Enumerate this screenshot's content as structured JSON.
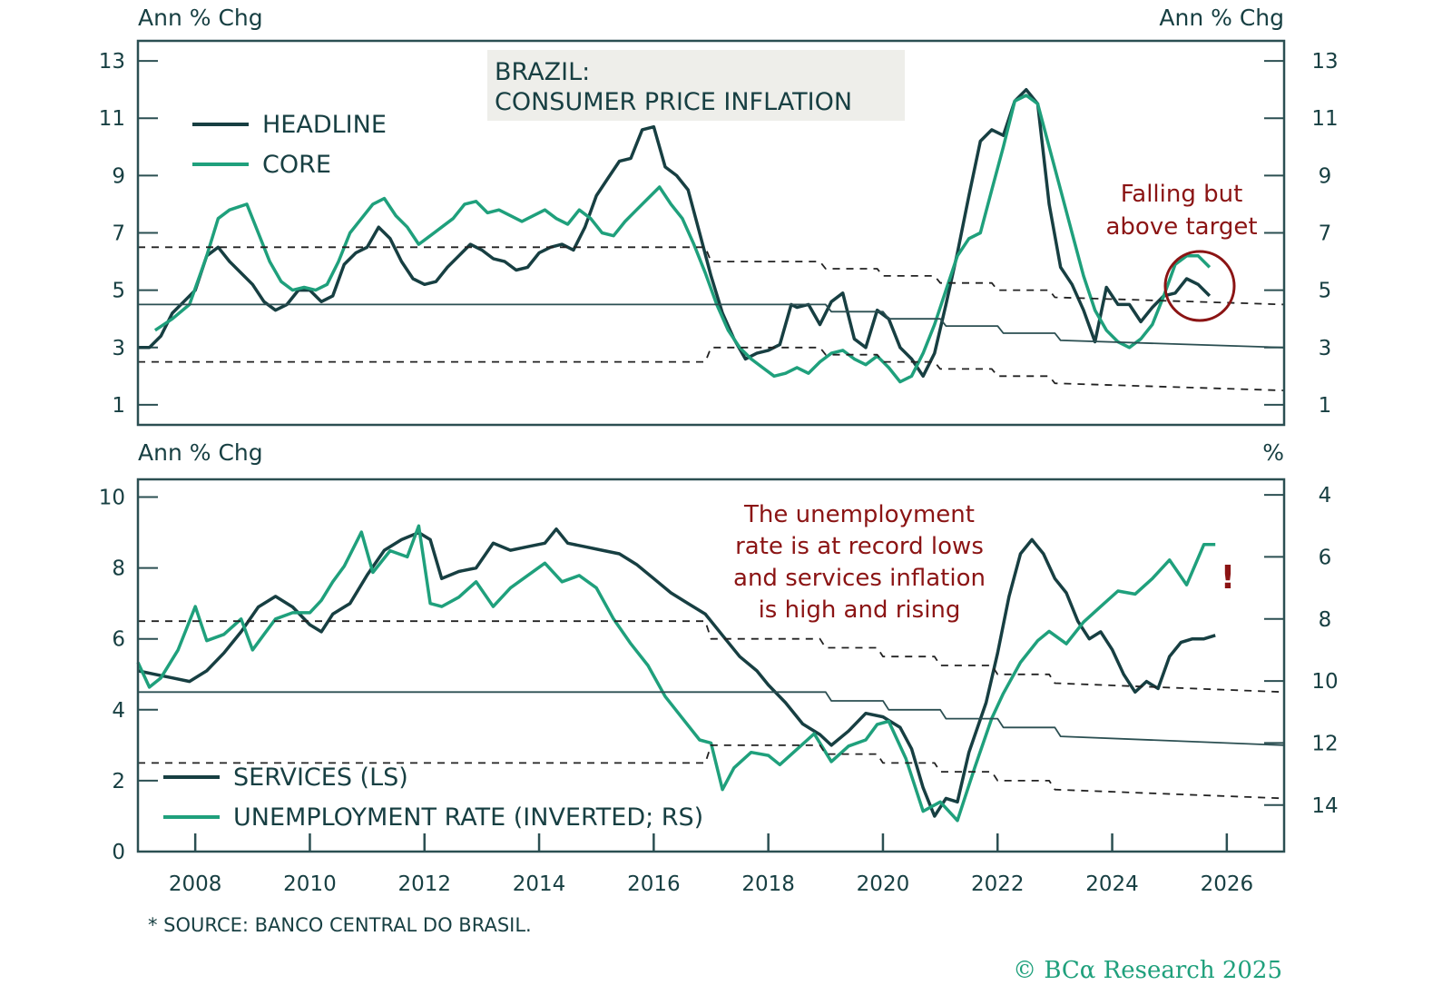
{
  "colors": {
    "headline": "#173f42",
    "core": "#1fa07c",
    "frame": "#2b4f52",
    "annotation": "#8b1414",
    "title_box": "#eeeeea",
    "credit": "#1fa07c"
  },
  "footer": {
    "source": "* SOURCE: BANCO CENTRAL DO BRASIL.",
    "credit": "© BCα Research 2025"
  },
  "chart_data": [
    {
      "type": "line",
      "title": "BRAZIL:",
      "subtitle": "CONSUMER PRICE INFLATION",
      "ylabel_left": "Ann % Chg",
      "ylabel_right": "Ann % Chg",
      "xlim": [
        2007.0,
        2027.0
      ],
      "ylim": [
        0.3,
        13.7
      ],
      "yticks": [
        1,
        3,
        5,
        7,
        9,
        11,
        13
      ],
      "legend": [
        "HEADLINE",
        "CORE"
      ],
      "legend_position": "top-left",
      "annotation": {
        "lines": [
          "Falling but",
          "above target"
        ],
        "circle_at": [
          2025.4,
          5.3
        ]
      },
      "series": [
        {
          "name": "HEADLINE",
          "color_key": "headline",
          "x": [
            2007.0,
            2007.2,
            2007.4,
            2007.6,
            2007.8,
            2008.0,
            2008.2,
            2008.4,
            2008.6,
            2008.8,
            2009.0,
            2009.2,
            2009.4,
            2009.6,
            2009.8,
            2010.0,
            2010.2,
            2010.4,
            2010.6,
            2010.8,
            2011.0,
            2011.2,
            2011.4,
            2011.6,
            2011.8,
            2012.0,
            2012.2,
            2012.4,
            2012.6,
            2012.8,
            2013.0,
            2013.2,
            2013.4,
            2013.6,
            2013.8,
            2014.0,
            2014.2,
            2014.4,
            2014.6,
            2014.8,
            2015.0,
            2015.2,
            2015.4,
            2015.6,
            2015.8,
            2016.0,
            2016.2,
            2016.4,
            2016.6,
            2016.8,
            2017.0,
            2017.2,
            2017.4,
            2017.6,
            2017.8,
            2018.0,
            2018.2,
            2018.4,
            2018.5,
            2018.7,
            2018.9,
            2019.1,
            2019.3,
            2019.5,
            2019.7,
            2019.9,
            2020.1,
            2020.3,
            2020.5,
            2020.7,
            2020.9,
            2021.1,
            2021.3,
            2021.5,
            2021.7,
            2021.9,
            2022.1,
            2022.3,
            2022.5,
            2022.7,
            2022.9,
            2023.1,
            2023.3,
            2023.5,
            2023.7,
            2023.9,
            2024.1,
            2024.3,
            2024.5,
            2024.7,
            2024.9,
            2025.1,
            2025.3,
            2025.5,
            2025.7
          ],
          "y": [
            3.0,
            3.0,
            3.4,
            4.2,
            4.6,
            5.0,
            6.2,
            6.5,
            6.0,
            5.6,
            5.2,
            4.6,
            4.3,
            4.5,
            5.0,
            5.0,
            4.6,
            4.8,
            5.9,
            6.3,
            6.5,
            7.2,
            6.8,
            6.0,
            5.4,
            5.2,
            5.3,
            5.8,
            6.2,
            6.6,
            6.4,
            6.1,
            6.0,
            5.7,
            5.8,
            6.3,
            6.5,
            6.6,
            6.4,
            7.2,
            8.3,
            8.9,
            9.5,
            9.6,
            10.6,
            10.7,
            9.3,
            9.0,
            8.5,
            7.0,
            5.5,
            4.2,
            3.3,
            2.6,
            2.8,
            2.9,
            3.1,
            4.5,
            4.4,
            4.5,
            3.8,
            4.6,
            4.9,
            3.3,
            3.0,
            4.3,
            4.0,
            3.0,
            2.6,
            2.0,
            2.8,
            4.5,
            6.3,
            8.3,
            10.2,
            10.6,
            10.4,
            11.6,
            12.0,
            11.5,
            8.0,
            5.8,
            5.2,
            4.3,
            3.2,
            5.1,
            4.5,
            4.5,
            3.9,
            4.4,
            4.8,
            4.9,
            5.4,
            5.2,
            4.8
          ]
        },
        {
          "name": "CORE",
          "color_key": "core",
          "x": [
            2007.3,
            2007.6,
            2007.9,
            2008.2,
            2008.4,
            2008.6,
            2008.9,
            2009.1,
            2009.3,
            2009.5,
            2009.7,
            2009.9,
            2010.1,
            2010.3,
            2010.5,
            2010.7,
            2010.9,
            2011.1,
            2011.3,
            2011.5,
            2011.7,
            2011.9,
            2012.1,
            2012.3,
            2012.5,
            2012.7,
            2012.9,
            2013.1,
            2013.3,
            2013.5,
            2013.7,
            2013.9,
            2014.1,
            2014.3,
            2014.5,
            2014.7,
            2014.9,
            2015.1,
            2015.3,
            2015.5,
            2015.7,
            2015.9,
            2016.1,
            2016.3,
            2016.5,
            2016.7,
            2016.9,
            2017.1,
            2017.3,
            2017.5,
            2017.7,
            2017.9,
            2018.1,
            2018.3,
            2018.5,
            2018.7,
            2018.9,
            2019.1,
            2019.3,
            2019.5,
            2019.7,
            2019.9,
            2020.1,
            2020.3,
            2020.5,
            2020.7,
            2020.9,
            2021.1,
            2021.3,
            2021.5,
            2021.7,
            2021.9,
            2022.1,
            2022.3,
            2022.5,
            2022.7,
            2022.9,
            2023.1,
            2023.3,
            2023.5,
            2023.7,
            2023.9,
            2024.1,
            2024.3,
            2024.5,
            2024.7,
            2024.9,
            2025.1,
            2025.3,
            2025.5,
            2025.7
          ],
          "y": [
            3.6,
            4.0,
            4.5,
            6.2,
            7.5,
            7.8,
            8.0,
            7.0,
            6.0,
            5.3,
            5.0,
            5.1,
            5.0,
            5.2,
            6.0,
            7.0,
            7.5,
            8.0,
            8.2,
            7.6,
            7.2,
            6.6,
            6.9,
            7.2,
            7.5,
            8.0,
            8.1,
            7.7,
            7.8,
            7.6,
            7.4,
            7.6,
            7.8,
            7.5,
            7.3,
            7.8,
            7.5,
            7.0,
            6.9,
            7.4,
            7.8,
            8.2,
            8.6,
            8.0,
            7.5,
            6.6,
            5.6,
            4.5,
            3.6,
            3.0,
            2.6,
            2.3,
            2.0,
            2.1,
            2.3,
            2.1,
            2.5,
            2.8,
            2.9,
            2.6,
            2.4,
            2.7,
            2.3,
            1.8,
            2.0,
            2.8,
            3.8,
            5.0,
            6.2,
            6.8,
            7.0,
            8.5,
            10.0,
            11.6,
            11.8,
            11.5,
            10.0,
            8.5,
            7.0,
            5.5,
            4.3,
            3.6,
            3.2,
            3.0,
            3.3,
            3.8,
            4.8,
            5.9,
            6.2,
            6.2,
            5.8
          ]
        },
        {
          "name": "TARGET CENTER",
          "style": "solid-thin",
          "x": [
            2007.0,
            2019.0,
            2019.1,
            2020.0,
            2020.1,
            2021.0,
            2021.1,
            2022.0,
            2022.1,
            2023.0,
            2023.1,
            2027.0
          ],
          "y": [
            4.5,
            4.5,
            4.25,
            4.25,
            4.0,
            4.0,
            3.75,
            3.75,
            3.5,
            3.5,
            3.25,
            3.0
          ]
        },
        {
          "name": "TARGET UPPER",
          "style": "dashed",
          "x": [
            2007.0,
            2016.9,
            2017.0,
            2018.9,
            2019.0,
            2019.9,
            2020.0,
            2020.9,
            2021.0,
            2021.9,
            2022.0,
            2022.9,
            2023.0,
            2027.0
          ],
          "y": [
            6.5,
            6.5,
            6.0,
            6.0,
            5.75,
            5.75,
            5.5,
            5.5,
            5.25,
            5.25,
            5.0,
            5.0,
            4.75,
            4.5
          ]
        },
        {
          "name": "TARGET LOWER",
          "style": "dashed",
          "x": [
            2007.0,
            2016.9,
            2017.0,
            2018.9,
            2019.0,
            2019.9,
            2020.0,
            2020.9,
            2021.0,
            2021.9,
            2022.0,
            2022.9,
            2023.0,
            2027.0
          ],
          "y": [
            2.5,
            2.5,
            3.0,
            3.0,
            2.75,
            2.75,
            2.5,
            2.5,
            2.25,
            2.25,
            2.0,
            2.0,
            1.75,
            1.5
          ]
        }
      ]
    },
    {
      "type": "line",
      "ylabel_left": "Ann % Chg",
      "ylabel_right": "%",
      "xlim": [
        2007.0,
        2027.0
      ],
      "xticks": [
        2008,
        2010,
        2012,
        2014,
        2016,
        2018,
        2020,
        2022,
        2024,
        2026
      ],
      "ylim_left": [
        0,
        10.5
      ],
      "yticks_left": [
        0,
        2,
        4,
        6,
        8,
        10
      ],
      "ylim_right_inverted": [
        3.5,
        15.5
      ],
      "yticks_right": [
        4,
        6,
        8,
        10,
        12,
        14
      ],
      "legend": [
        "SERVICES (LS)",
        "UNEMPLOYMENT RATE (INVERTED; RS)"
      ],
      "legend_position": "bottom-left",
      "annotation": {
        "lines": [
          "The unemployment",
          "rate is at record lows",
          "and services inflation",
          "is high and rising"
        ],
        "mark": "!"
      },
      "series": [
        {
          "name": "SERVICES (LS)",
          "color_key": "headline",
          "axis": "left",
          "x": [
            2007.0,
            2007.3,
            2007.6,
            2007.9,
            2008.2,
            2008.5,
            2008.8,
            2009.1,
            2009.4,
            2009.7,
            2010.0,
            2010.2,
            2010.4,
            2010.7,
            2011.0,
            2011.3,
            2011.6,
            2011.9,
            2012.1,
            2012.3,
            2012.6,
            2012.9,
            2013.2,
            2013.5,
            2013.8,
            2014.1,
            2014.3,
            2014.5,
            2014.8,
            2015.1,
            2015.4,
            2015.7,
            2016.0,
            2016.3,
            2016.6,
            2016.9,
            2017.2,
            2017.5,
            2017.8,
            2018.0,
            2018.3,
            2018.6,
            2018.9,
            2019.1,
            2019.4,
            2019.7,
            2020.0,
            2020.3,
            2020.5,
            2020.7,
            2020.9,
            2021.1,
            2021.3,
            2021.5,
            2021.8,
            2022.0,
            2022.2,
            2022.4,
            2022.6,
            2022.8,
            2023.0,
            2023.2,
            2023.4,
            2023.6,
            2023.8,
            2024.0,
            2024.2,
            2024.4,
            2024.6,
            2024.8,
            2025.0,
            2025.2,
            2025.4,
            2025.6,
            2025.8
          ],
          "y": [
            5.1,
            5.0,
            4.9,
            4.8,
            5.1,
            5.6,
            6.2,
            6.9,
            7.2,
            6.9,
            6.4,
            6.2,
            6.7,
            7.0,
            7.8,
            8.5,
            8.8,
            9.0,
            8.8,
            7.7,
            7.9,
            8.0,
            8.7,
            8.5,
            8.6,
            8.7,
            9.1,
            8.7,
            8.6,
            8.5,
            8.4,
            8.1,
            7.7,
            7.3,
            7.0,
            6.7,
            6.1,
            5.5,
            5.1,
            4.7,
            4.2,
            3.6,
            3.3,
            3.0,
            3.4,
            3.9,
            3.8,
            3.5,
            2.9,
            1.8,
            1.0,
            1.5,
            1.4,
            2.8,
            4.2,
            5.6,
            7.2,
            8.4,
            8.8,
            8.4,
            7.7,
            7.3,
            6.5,
            6.0,
            6.2,
            5.7,
            5.0,
            4.5,
            4.8,
            4.6,
            5.5,
            5.9,
            6.0,
            6.0,
            6.1
          ]
        },
        {
          "name": "UNEMPLOYMENT RATE (INVERTED; RS)",
          "color_key": "core",
          "axis": "right",
          "x": [
            2007.0,
            2007.2,
            2007.4,
            2007.7,
            2008.0,
            2008.2,
            2008.5,
            2008.8,
            2009.0,
            2009.2,
            2009.4,
            2009.7,
            2010.0,
            2010.2,
            2010.4,
            2010.6,
            2010.9,
            2011.1,
            2011.4,
            2011.7,
            2011.9,
            2012.1,
            2012.3,
            2012.6,
            2012.9,
            2013.2,
            2013.5,
            2013.8,
            2014.1,
            2014.4,
            2014.7,
            2015.0,
            2015.3,
            2015.6,
            2015.9,
            2016.2,
            2016.5,
            2016.8,
            2017.0,
            2017.2,
            2017.4,
            2017.7,
            2018.0,
            2018.2,
            2018.5,
            2018.8,
            2019.1,
            2019.4,
            2019.7,
            2019.9,
            2020.1,
            2020.4,
            2020.7,
            2021.0,
            2021.3,
            2021.6,
            2021.9,
            2022.1,
            2022.4,
            2022.7,
            2022.9,
            2023.2,
            2023.5,
            2023.8,
            2024.1,
            2024.4,
            2024.7,
            2025.0,
            2025.3,
            2025.6,
            2025.8
          ],
          "y": [
            9.4,
            10.2,
            9.9,
            9.0,
            7.6,
            8.7,
            8.5,
            8.0,
            9.0,
            8.5,
            8.0,
            7.8,
            7.8,
            7.4,
            6.8,
            6.3,
            5.2,
            6.5,
            5.8,
            6.0,
            5.0,
            7.5,
            7.6,
            7.3,
            6.8,
            7.6,
            7.0,
            6.6,
            6.2,
            6.8,
            6.6,
            7.0,
            8.0,
            8.8,
            9.5,
            10.5,
            11.2,
            11.9,
            12.0,
            13.5,
            12.8,
            12.3,
            12.4,
            12.7,
            12.2,
            11.7,
            12.6,
            12.1,
            11.9,
            11.4,
            11.3,
            12.5,
            14.2,
            13.9,
            14.5,
            12.8,
            11.2,
            10.4,
            9.4,
            8.7,
            8.4,
            8.8,
            8.1,
            7.6,
            7.1,
            7.2,
            6.7,
            6.1,
            6.9,
            5.6,
            5.6
          ]
        },
        {
          "name": "SERVICES TARGET CENTER",
          "style": "solid-thin",
          "axis": "left",
          "x": [
            2007.0,
            2019.0,
            2019.1,
            2020.0,
            2020.1,
            2021.0,
            2021.1,
            2022.0,
            2022.1,
            2023.0,
            2023.1,
            2027.0
          ],
          "y": [
            4.5,
            4.5,
            4.25,
            4.25,
            4.0,
            4.0,
            3.75,
            3.75,
            3.5,
            3.5,
            3.25,
            3.0
          ]
        },
        {
          "name": "SERVICES TARGET UPPER",
          "style": "dashed",
          "axis": "left",
          "x": [
            2007.0,
            2016.9,
            2017.0,
            2018.9,
            2019.0,
            2019.9,
            2020.0,
            2020.9,
            2021.0,
            2021.9,
            2022.0,
            2022.9,
            2023.0,
            2027.0
          ],
          "y": [
            6.5,
            6.5,
            6.0,
            6.0,
            5.75,
            5.75,
            5.5,
            5.5,
            5.25,
            5.25,
            5.0,
            5.0,
            4.75,
            4.5
          ]
        },
        {
          "name": "SERVICES TARGET LOWER",
          "style": "dashed",
          "axis": "left",
          "x": [
            2007.0,
            2016.9,
            2017.0,
            2018.9,
            2019.0,
            2019.9,
            2020.0,
            2020.9,
            2021.0,
            2021.9,
            2022.0,
            2022.9,
            2023.0,
            2027.0
          ],
          "y": [
            2.5,
            2.5,
            3.0,
            3.0,
            2.75,
            2.75,
            2.5,
            2.5,
            2.25,
            2.25,
            2.0,
            2.0,
            1.75,
            1.5
          ]
        }
      ]
    }
  ],
  "text": {
    "top_ylabel_left": "Ann % Chg",
    "top_ylabel_right": "Ann % Chg",
    "title_line1": "BRAZIL:",
    "title_line2": "CONSUMER PRICE INFLATION",
    "legend_headline": "HEADLINE",
    "legend_core": "CORE",
    "anno_top_1": "Falling but",
    "anno_top_2": "above target",
    "bottom_ylabel_left": "Ann % Chg",
    "bottom_ylabel_right": "%",
    "legend_services": "SERVICES (LS)",
    "legend_unemp": "UNEMPLOYMENT RATE (INVERTED; RS)",
    "anno_bot_1": "The unemployment",
    "anno_bot_2": "rate is at record lows",
    "anno_bot_3": "and services inflation",
    "anno_bot_4": "is high and rising",
    "anno_bot_mark": "!"
  }
}
